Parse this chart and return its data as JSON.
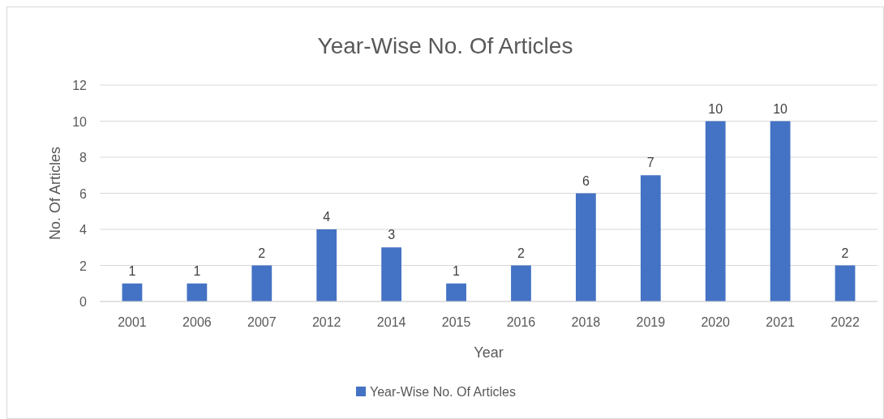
{
  "chart_data": {
    "type": "bar",
    "title": "Year-Wise No. Of Articles",
    "xlabel": "Year",
    "ylabel": "No. Of Articles",
    "categories": [
      "2001",
      "2006",
      "2007",
      "2012",
      "2014",
      "2015",
      "2016",
      "2018",
      "2019",
      "2020",
      "2021",
      "2022"
    ],
    "series": [
      {
        "name": "Year-Wise No. Of Articles",
        "color": "#4472c4",
        "values": [
          1,
          1,
          2,
          4,
          3,
          1,
          2,
          6,
          7,
          10,
          10,
          2
        ]
      }
    ],
    "ylim": [
      0,
      12
    ],
    "yticks": [
      0,
      2,
      4,
      6,
      8,
      10,
      12
    ],
    "grid": "y",
    "legend": "bottom",
    "data_labels": true
  }
}
